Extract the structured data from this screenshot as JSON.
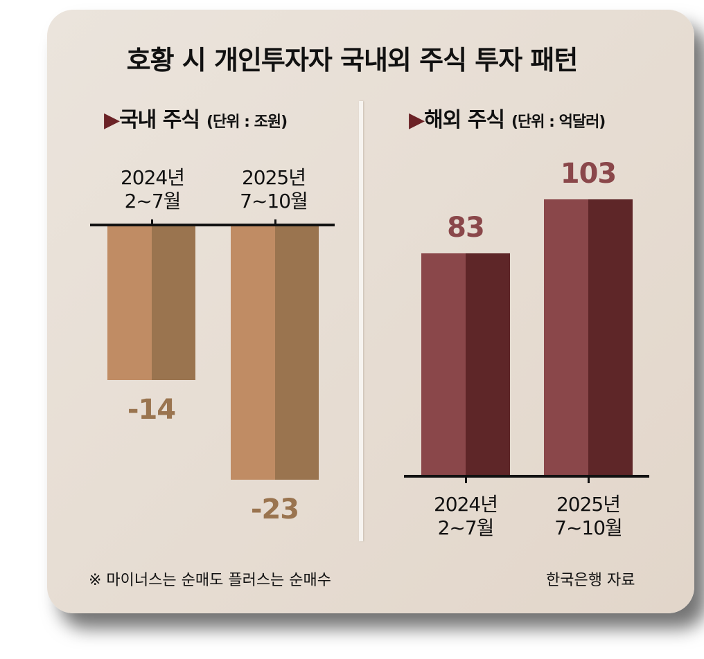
{
  "title": "호황 시 개인투자자 국내외 주식 투자 패턴",
  "footnote": "※ 마이너스는 순매도 플러스는 순매수",
  "source": "한국은행 자료",
  "colors": {
    "domestic_light": "#c08c64",
    "domestic_dark": "#9a744f",
    "foreign_light": "#8a474a",
    "foreign_dark": "#5e2628",
    "triangle": "#6b2226"
  },
  "chart_data": [
    {
      "type": "bar",
      "title": "국내 주식",
      "unit": "(단위 : 조원)",
      "categories": [
        "2024년\n2~7월",
        "2025년\n7~10월"
      ],
      "category_lines": [
        [
          "2024년",
          "2~7월"
        ],
        [
          "2025년",
          "7~10월"
        ]
      ],
      "values": [
        -14,
        -23
      ],
      "labels": [
        "-14",
        "-23"
      ]
    },
    {
      "type": "bar",
      "title": "해외 주식",
      "unit": "(단위 : 억달러)",
      "categories": [
        "2024년\n2~7월",
        "2025년\n7~10월"
      ],
      "category_lines": [
        [
          "2024년",
          "2~7월"
        ],
        [
          "2025년",
          "7~10월"
        ]
      ],
      "values": [
        83,
        103
      ],
      "labels": [
        "83",
        "103"
      ]
    }
  ]
}
